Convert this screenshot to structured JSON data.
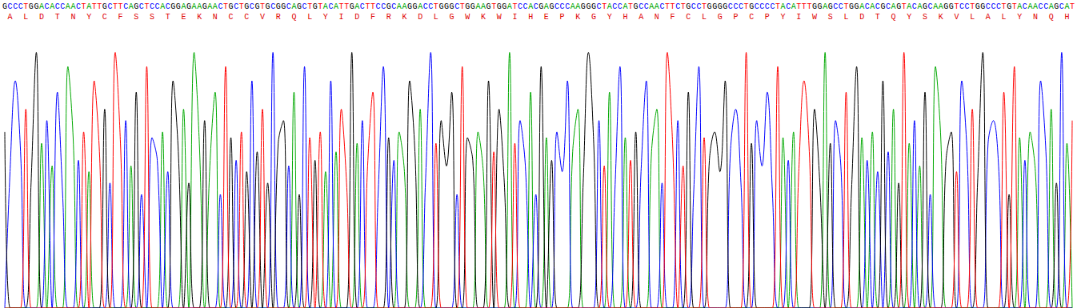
{
  "chart_data": {
    "type": "line",
    "categories": [
      "G",
      "C",
      "C",
      "C",
      "T",
      "G",
      "G",
      "A",
      "C",
      "A",
      "C",
      "C",
      "A",
      "A",
      "C",
      "T",
      "A",
      "T",
      "T",
      "G",
      "C",
      "T",
      "T",
      "C",
      "A",
      "G",
      "C",
      "T",
      "C",
      "C",
      "A",
      "C",
      "G",
      "G",
      "A",
      "G",
      "A",
      "A",
      "G",
      "A",
      "A",
      "C",
      "T",
      "G",
      "C",
      "T",
      "G",
      "C",
      "G",
      "T",
      "G",
      "C",
      "G",
      "G",
      "C",
      "A",
      "G",
      "C",
      "T",
      "G",
      "T",
      "A",
      "C",
      "A",
      "T",
      "T",
      "G",
      "A",
      "C",
      "T",
      "T",
      "C",
      "C",
      "G",
      "C",
      "A",
      "A",
      "G",
      "G",
      "A",
      "C",
      "C",
      "T",
      "G",
      "G",
      "G",
      "C",
      "T",
      "G",
      "G",
      "A",
      "A",
      "G",
      "T",
      "G",
      "G",
      "A",
      "T",
      "C",
      "C",
      "A",
      "C",
      "G",
      "A",
      "G",
      "C",
      "C",
      "C",
      "A",
      "A",
      "G",
      "G",
      "G",
      "C",
      "T",
      "A",
      "C",
      "C",
      "A",
      "T",
      "G",
      "C",
      "C",
      "A",
      "A",
      "C",
      "T",
      "T",
      "C",
      "T",
      "G",
      "C",
      "C",
      "T",
      "G",
      "G",
      "G",
      "G",
      "C",
      "C",
      "C",
      "T",
      "G",
      "C",
      "C",
      "C",
      "C",
      "T",
      "A",
      "C",
      "A",
      "T",
      "T",
      "T",
      "G",
      "G",
      "A",
      "G",
      "C",
      "C",
      "T",
      "G",
      "G",
      "A",
      "C",
      "A",
      "C",
      "G",
      "C",
      "A",
      "G",
      "T",
      "A",
      "C",
      "A",
      "G",
      "C",
      "A",
      "A",
      "G",
      "G",
      "T",
      "C",
      "C",
      "T",
      "G",
      "G",
      "C",
      "C",
      "C",
      "T",
      "G",
      "T",
      "A",
      "C",
      "A",
      "A",
      "C",
      "C",
      "A",
      "G",
      "C",
      "A",
      "T"
    ],
    "translation": [
      null,
      "A",
      null,
      null,
      "L",
      null,
      null,
      "D",
      null,
      null,
      "T",
      null,
      null,
      "N",
      null,
      null,
      "Y",
      null,
      null,
      "C",
      null,
      null,
      "F",
      null,
      null,
      "S",
      null,
      null,
      "S",
      null,
      null,
      "T",
      null,
      null,
      "E",
      null,
      null,
      "K",
      null,
      null,
      "N",
      null,
      null,
      "C",
      null,
      null,
      "C",
      null,
      null,
      "V",
      null,
      null,
      "R",
      null,
      null,
      "Q",
      null,
      null,
      "L",
      null,
      null,
      "Y",
      null,
      null,
      "I",
      null,
      null,
      "D",
      null,
      null,
      "F",
      null,
      null,
      "R",
      null,
      null,
      "K",
      null,
      null,
      "D",
      null,
      null,
      "L",
      null,
      null,
      "G",
      null,
      null,
      "W",
      null,
      null,
      "K",
      null,
      null,
      "W",
      null,
      null,
      "I",
      null,
      null,
      "H",
      null,
      null,
      "E",
      null,
      null,
      "P",
      null,
      null,
      "K",
      null,
      null,
      "G",
      null,
      null,
      "Y",
      null,
      null,
      "H",
      null,
      null,
      "A",
      null,
      null,
      "N",
      null,
      null,
      "F",
      null,
      null,
      "C",
      null,
      null,
      "L",
      null,
      null,
      "G",
      null,
      null,
      "P",
      null,
      null,
      "C",
      null,
      null,
      "P",
      null,
      null,
      "Y",
      null,
      null,
      "I",
      null,
      null,
      "W",
      null,
      null,
      "S",
      null,
      null,
      "L",
      null,
      null,
      "D",
      null,
      null,
      "T",
      null,
      null,
      "Q",
      null,
      null,
      "Y",
      null,
      null,
      "S",
      null,
      null,
      "K",
      null,
      null,
      "V",
      null,
      null,
      "L",
      null,
      null,
      "A",
      null,
      null,
      "L",
      null,
      null,
      "Y",
      null,
      null,
      "N",
      null,
      null,
      "Q",
      null,
      null,
      "H",
      null
    ],
    "series": [
      {
        "name": "A",
        "color": "#00a800",
        "values": [
          0,
          0,
          0,
          0,
          0,
          0,
          0,
          58,
          0,
          50,
          0,
          0,
          85,
          60,
          0,
          0,
          48,
          0,
          0,
          0,
          0,
          0,
          0,
          0,
          50,
          0,
          0,
          0,
          0,
          0,
          62,
          0,
          0,
          0,
          70,
          0,
          90,
          58,
          0,
          50,
          76,
          0,
          0,
          0,
          0,
          0,
          0,
          0,
          0,
          0,
          0,
          0,
          0,
          0,
          0,
          76,
          0,
          0,
          0,
          0,
          0,
          48,
          0,
          55,
          0,
          0,
          0,
          58,
          0,
          0,
          0,
          0,
          0,
          0,
          0,
          62,
          48,
          0,
          0,
          70,
          0,
          0,
          0,
          0,
          0,
          0,
          0,
          0,
          0,
          0,
          62,
          48,
          0,
          0,
          0,
          0,
          90,
          0,
          0,
          0,
          76,
          0,
          0,
          60,
          0,
          0,
          0,
          0,
          55,
          70,
          0,
          0,
          0,
          0,
          0,
          76,
          0,
          0,
          60,
          0,
          0,
          0,
          0,
          55,
          70,
          0,
          0,
          0,
          0,
          0,
          0,
          0,
          0,
          0,
          0,
          0,
          0,
          0,
          0,
          0,
          0,
          0,
          0,
          0,
          0,
          0,
          0,
          0,
          60,
          0,
          62,
          0,
          0,
          0,
          0,
          0,
          90,
          0,
          0,
          0,
          0,
          0,
          0,
          60,
          0,
          62,
          0,
          0,
          0,
          70,
          0,
          0,
          58,
          0,
          50,
          0,
          0,
          85,
          60,
          0,
          0,
          0,
          0,
          0,
          0,
          0,
          0,
          0,
          0,
          0,
          0,
          0,
          0,
          60,
          0,
          62,
          48,
          0,
          0,
          70,
          0,
          0,
          58,
          0
        ]
      },
      {
        "name": "C",
        "color": "#0000ff",
        "values": [
          0,
          48,
          80,
          55,
          0,
          0,
          0,
          0,
          66,
          0,
          76,
          40,
          0,
          0,
          52,
          0,
          0,
          0,
          0,
          0,
          44,
          0,
          0,
          66,
          0,
          0,
          40,
          0,
          60,
          52,
          0,
          48,
          0,
          0,
          0,
          0,
          0,
          0,
          0,
          0,
          0,
          40,
          0,
          0,
          52,
          0,
          0,
          80,
          0,
          0,
          0,
          90,
          0,
          0,
          50,
          0,
          0,
          85,
          0,
          0,
          0,
          0,
          80,
          0,
          0,
          0,
          0,
          0,
          66,
          0,
          0,
          40,
          85,
          0,
          52,
          0,
          0,
          0,
          0,
          0,
          44,
          90,
          0,
          0,
          0,
          0,
          40,
          0,
          0,
          0,
          0,
          0,
          0,
          0,
          0,
          0,
          0,
          0,
          66,
          50,
          0,
          40,
          0,
          0,
          0,
          62,
          48,
          80,
          0,
          0,
          0,
          0,
          0,
          66,
          0,
          0,
          40,
          85,
          0,
          0,
          0,
          48,
          80,
          0,
          0,
          44,
          0,
          0,
          66,
          0,
          0,
          40,
          85,
          0,
          0,
          0,
          0,
          0,
          55,
          70,
          44,
          0,
          0,
          66,
          50,
          76,
          40,
          0,
          0,
          52,
          0,
          0,
          0,
          0,
          0,
          0,
          0,
          0,
          66,
          50,
          0,
          0,
          0,
          0,
          52,
          0,
          48,
          0,
          55,
          0,
          0,
          0,
          0,
          66,
          0,
          0,
          40,
          0,
          0,
          0,
          0,
          0,
          80,
          55,
          0,
          0,
          0,
          58,
          66,
          50,
          0,
          0,
          0,
          0,
          52,
          0,
          0,
          80,
          55,
          0,
          0,
          90,
          0,
          0
        ]
      },
      {
        "name": "G",
        "color": "#000000",
        "values": [
          62,
          0,
          0,
          0,
          0,
          44,
          90,
          0,
          0,
          0,
          0,
          0,
          0,
          0,
          0,
          0,
          0,
          0,
          0,
          70,
          0,
          0,
          0,
          0,
          0,
          76,
          0,
          0,
          0,
          0,
          0,
          0,
          80,
          55,
          0,
          44,
          0,
          0,
          66,
          0,
          0,
          0,
          0,
          60,
          0,
          0,
          48,
          0,
          55,
          0,
          44,
          0,
          58,
          66,
          0,
          0,
          40,
          0,
          0,
          52,
          0,
          0,
          0,
          0,
          0,
          0,
          90,
          0,
          0,
          0,
          0,
          0,
          0,
          60,
          0,
          0,
          0,
          80,
          55,
          0,
          0,
          0,
          0,
          66,
          50,
          76,
          0,
          0,
          60,
          52,
          0,
          0,
          80,
          0,
          70,
          44,
          0,
          0,
          0,
          0,
          0,
          0,
          85,
          0,
          52,
          0,
          0,
          0,
          0,
          0,
          44,
          90,
          58,
          0,
          0,
          0,
          0,
          0,
          0,
          0,
          62,
          0,
          0,
          0,
          0,
          0,
          0,
          0,
          0,
          0,
          76,
          0,
          0,
          0,
          52,
          62,
          48,
          80,
          0,
          0,
          0,
          0,
          58,
          0,
          0,
          0,
          0,
          0,
          0,
          0,
          0,
          0,
          0,
          0,
          70,
          44,
          0,
          58,
          0,
          0,
          0,
          40,
          85,
          0,
          0,
          0,
          0,
          80,
          0,
          0,
          44,
          0,
          0,
          0,
          0,
          76,
          0,
          0,
          0,
          52,
          62,
          0,
          0,
          0,
          0,
          44,
          90,
          0,
          0,
          0,
          0,
          40,
          0,
          0,
          0,
          0,
          0,
          0,
          0,
          0,
          44,
          0,
          0,
          0
        ]
      },
      {
        "name": "T",
        "color": "#ff0000",
        "values": [
          0,
          0,
          0,
          0,
          70,
          0,
          0,
          0,
          0,
          0,
          0,
          0,
          0,
          0,
          0,
          62,
          0,
          80,
          55,
          0,
          0,
          90,
          58,
          0,
          0,
          0,
          0,
          85,
          0,
          0,
          0,
          0,
          0,
          0,
          0,
          0,
          0,
          0,
          0,
          0,
          0,
          0,
          85,
          0,
          0,
          62,
          0,
          0,
          0,
          70,
          0,
          0,
          0,
          0,
          0,
          0,
          0,
          0,
          60,
          0,
          62,
          0,
          0,
          0,
          70,
          44,
          0,
          0,
          0,
          50,
          76,
          0,
          0,
          0,
          0,
          0,
          0,
          0,
          0,
          0,
          0,
          0,
          58,
          0,
          0,
          0,
          0,
          85,
          0,
          0,
          0,
          0,
          0,
          55,
          0,
          0,
          0,
          58,
          0,
          0,
          0,
          0,
          0,
          0,
          0,
          0,
          0,
          0,
          0,
          0,
          0,
          0,
          0,
          0,
          50,
          0,
          0,
          0,
          0,
          52,
          0,
          0,
          0,
          0,
          0,
          0,
          90,
          58,
          0,
          50,
          0,
          0,
          0,
          60,
          0,
          0,
          0,
          0,
          0,
          0,
          0,
          90,
          0,
          0,
          0,
          0,
          0,
          85,
          0,
          0,
          0,
          48,
          80,
          55,
          0,
          0,
          0,
          0,
          0,
          0,
          76,
          0,
          0,
          0,
          0,
          0,
          0,
          0,
          0,
          0,
          0,
          90,
          0,
          0,
          0,
          0,
          0,
          0,
          0,
          0,
          0,
          48,
          0,
          0,
          70,
          0,
          0,
          0,
          0,
          0,
          76,
          0,
          85,
          0,
          0,
          0,
          0,
          0,
          0,
          0,
          0,
          0,
          0,
          66
        ]
      }
    ],
    "ylim": [
      0,
      100
    ],
    "grid": false,
    "tick_labels": "x"
  }
}
